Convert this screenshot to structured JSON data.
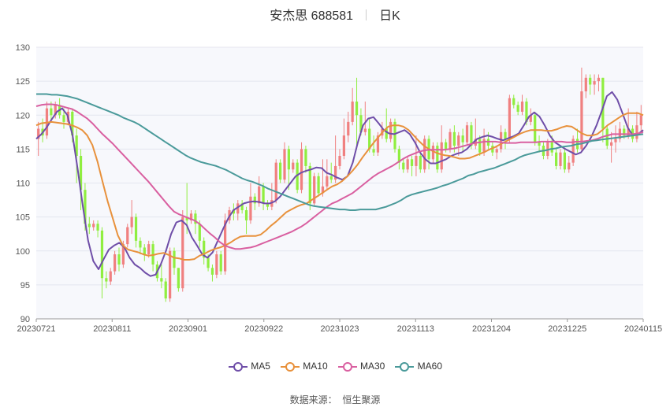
{
  "header": {
    "stock": "安杰思 688581",
    "period": "日K"
  },
  "source": {
    "label": "数据来源：",
    "name": "恒生聚源"
  },
  "chart_data": {
    "type": "candlestick",
    "ylim": [
      90,
      130
    ],
    "yticks": [
      90,
      95,
      100,
      105,
      110,
      115,
      120,
      125,
      130
    ],
    "xticks": [
      "20230721",
      "20230811",
      "20230901",
      "20230922",
      "20231023",
      "20231113",
      "20231204",
      "20231225",
      "20240115"
    ],
    "up_color": "#f08080",
    "down_color": "#90ee40",
    "candles": [
      [
        116.5,
        118,
        114,
        119
      ],
      [
        118,
        117,
        116,
        119.5
      ],
      [
        117,
        121,
        116.5,
        122
      ],
      [
        121,
        120,
        119,
        122
      ],
      [
        120,
        121.5,
        119.5,
        122
      ],
      [
        121.5,
        120,
        119.5,
        122.5
      ],
      [
        120,
        119,
        118,
        121
      ],
      [
        119,
        120.5,
        118.5,
        121
      ],
      [
        120.5,
        117,
        116,
        121
      ],
      [
        117,
        114,
        110,
        118
      ],
      [
        114,
        109,
        106,
        115
      ],
      [
        109,
        104,
        103,
        110
      ],
      [
        104,
        103.5,
        102.5,
        105
      ],
      [
        103.5,
        104,
        103,
        104.5
      ],
      [
        104,
        103,
        102,
        104.5
      ],
      [
        103,
        96,
        93,
        103.5
      ],
      [
        96,
        95.5,
        94.5,
        97
      ],
      [
        95.5,
        97,
        95,
        97.5
      ],
      [
        97,
        99.5,
        96.5,
        100
      ],
      [
        99.5,
        98,
        97,
        100.5
      ],
      [
        98,
        101,
        97.5,
        101.5
      ],
      [
        101,
        103.5,
        100.5,
        104
      ],
      [
        103.5,
        105,
        102.5,
        107.5
      ],
      [
        105,
        101.5,
        100.5,
        105.5
      ],
      [
        101.5,
        100.5,
        99.5,
        102
      ],
      [
        100.5,
        99.5,
        98.5,
        101
      ],
      [
        99.5,
        101,
        99,
        101.5
      ],
      [
        101,
        98,
        97,
        101.5
      ],
      [
        98,
        96,
        95.5,
        98.5
      ],
      [
        96,
        95.5,
        94.5,
        98
      ],
      [
        95.5,
        93,
        92.5,
        96
      ],
      [
        93,
        100,
        92.5,
        100.5
      ],
      [
        100,
        97.5,
        96.5,
        100.5
      ],
      [
        97.5,
        94.5,
        94,
        97.5
      ],
      [
        94.5,
        105,
        94,
        106
      ],
      [
        105,
        104.5,
        102.5,
        110
      ],
      [
        104.5,
        105.5,
        104,
        106
      ],
      [
        105.5,
        104,
        102.5,
        106
      ],
      [
        104,
        101.5,
        100.5,
        104.5
      ],
      [
        101.5,
        99,
        98,
        102
      ],
      [
        99,
        97.5,
        97,
        99.5
      ],
      [
        97.5,
        96.5,
        95.5,
        98
      ],
      [
        96.5,
        99.5,
        96,
        100
      ],
      [
        99.5,
        97,
        96.5,
        100
      ],
      [
        97,
        104.5,
        96.5,
        105.5
      ],
      [
        104.5,
        106,
        104,
        106.5
      ],
      [
        106,
        105.5,
        104.5,
        107
      ],
      [
        105.5,
        107,
        104.5,
        107.5
      ],
      [
        107,
        106,
        105.5,
        107.5
      ],
      [
        106,
        104.5,
        102.5,
        106.5
      ],
      [
        104.5,
        108,
        104,
        110
      ],
      [
        108,
        107,
        106,
        108.5
      ],
      [
        107,
        109.5,
        106.5,
        111
      ],
      [
        109.5,
        107,
        106,
        110
      ],
      [
        107,
        106.5,
        106,
        107.5
      ],
      [
        106.5,
        107.5,
        106,
        110
      ],
      [
        107.5,
        113,
        107,
        113.5
      ],
      [
        113,
        110.5,
        110,
        113.5
      ],
      [
        110.5,
        115,
        110,
        116
      ],
      [
        115,
        112,
        109,
        115.5
      ],
      [
        112,
        113,
        111.5,
        113.5
      ],
      [
        113,
        109,
        108.5,
        113.5
      ],
      [
        109,
        115,
        108.5,
        116
      ],
      [
        115,
        112.5,
        111.5,
        115.5
      ],
      [
        112.5,
        107,
        106,
        113
      ],
      [
        107,
        111,
        106.5,
        111.5
      ],
      [
        111,
        108.5,
        108,
        111.5
      ],
      [
        108.5,
        109.5,
        108,
        113.5
      ],
      [
        109.5,
        111,
        109,
        113.5
      ],
      [
        111,
        110.5,
        110,
        113
      ],
      [
        110.5,
        112.5,
        110,
        117
      ],
      [
        112.5,
        114,
        112,
        115
      ],
      [
        114,
        117,
        113.5,
        119.5
      ],
      [
        117,
        119,
        116,
        120.5
      ],
      [
        119,
        122,
        118.5,
        124
      ],
      [
        122,
        120,
        115,
        125.5
      ],
      [
        120,
        117.5,
        117,
        121
      ],
      [
        117.5,
        118,
        117,
        122
      ],
      [
        118,
        115,
        114.5,
        119.5
      ],
      [
        115,
        114.5,
        114,
        117
      ],
      [
        114.5,
        117,
        114,
        117.5
      ],
      [
        117,
        118,
        116.5,
        119
      ],
      [
        118,
        116.5,
        116,
        121
      ],
      [
        116.5,
        119,
        116,
        119.5
      ],
      [
        119,
        115,
        114.5,
        119.5
      ],
      [
        115,
        113,
        112,
        115.5
      ],
      [
        113,
        112,
        111.5,
        113.5
      ],
      [
        112,
        113.5,
        111.5,
        114
      ],
      [
        113.5,
        112.5,
        111,
        114
      ],
      [
        112.5,
        114,
        111,
        117
      ],
      [
        114,
        112,
        111.5,
        114.5
      ],
      [
        112,
        116.5,
        111.5,
        117
      ],
      [
        116.5,
        113.5,
        112,
        117
      ],
      [
        113.5,
        115.5,
        113,
        116
      ],
      [
        115.5,
        112,
        111.5,
        116
      ],
      [
        112,
        116,
        111.5,
        118.5
      ],
      [
        116,
        115,
        114.5,
        116.5
      ],
      [
        115,
        117.5,
        114.5,
        118
      ],
      [
        117.5,
        115.5,
        114.5,
        118.5
      ],
      [
        115.5,
        117,
        114,
        117.5
      ],
      [
        117,
        116,
        114.5,
        118
      ],
      [
        116,
        118.5,
        115.5,
        119
      ],
      [
        118.5,
        115.5,
        115,
        119
      ],
      [
        115.5,
        116.5,
        115,
        119.5
      ],
      [
        116.5,
        114.5,
        114,
        117
      ],
      [
        114.5,
        116.5,
        114,
        118
      ],
      [
        116.5,
        115.5,
        115,
        117.5
      ],
      [
        115.5,
        114.5,
        114,
        116
      ],
      [
        114.5,
        115,
        113.5,
        115.5
      ],
      [
        115,
        117.5,
        114.5,
        118.5
      ],
      [
        117.5,
        116.5,
        115,
        118
      ],
      [
        116.5,
        122.5,
        116,
        123
      ],
      [
        122.5,
        121.5,
        121,
        123
      ],
      [
        121.5,
        120.5,
        120,
        122
      ],
      [
        120.5,
        122,
        120,
        123
      ],
      [
        122,
        119,
        118.5,
        122.5
      ],
      [
        119,
        120,
        118.5,
        121
      ],
      [
        120,
        116,
        115.5,
        120.5
      ],
      [
        116,
        115.5,
        114.5,
        117
      ],
      [
        115.5,
        114,
        113.5,
        116
      ],
      [
        114,
        116,
        113.5,
        116.5
      ],
      [
        116,
        114.5,
        114,
        117
      ],
      [
        114.5,
        112.5,
        112,
        115
      ],
      [
        112.5,
        114.5,
        112,
        115
      ],
      [
        114.5,
        112,
        111.5,
        115
      ],
      [
        112,
        113,
        111.5,
        114
      ],
      [
        113,
        116.5,
        112.5,
        117
      ],
      [
        116.5,
        115,
        114.5,
        118
      ],
      [
        115,
        123.5,
        114.5,
        127
      ],
      [
        123.5,
        125.5,
        122.5,
        126
      ],
      [
        125.5,
        124.5,
        123,
        126
      ],
      [
        124.5,
        125,
        123,
        126
      ],
      [
        125,
        125.5,
        123.5,
        126
      ],
      [
        125.5,
        118,
        116,
        125.5
      ],
      [
        118,
        115.5,
        115,
        118.5
      ],
      [
        115.5,
        116,
        113,
        117.5
      ],
      [
        116,
        116.5,
        114.5,
        118.5
      ],
      [
        116.5,
        118,
        116,
        119
      ],
      [
        118,
        117,
        116.5,
        118.5
      ],
      [
        117,
        118,
        116.5,
        121
      ],
      [
        118,
        116.5,
        116,
        118.5
      ],
      [
        116.5,
        118.5,
        116,
        120.5
      ],
      [
        118.5,
        120,
        117.5,
        121.5
      ]
    ],
    "series": [
      {
        "name": "MA5",
        "color": "#6f4ea8",
        "values": [
          116.5,
          117.2,
          118.2,
          119.4,
          120.5,
          121,
          120,
          117,
          112,
          106.5,
          101.5,
          98.5,
          97.3,
          98.8,
          100.2,
          100.8,
          101.2,
          100.5,
          99,
          98,
          97.5,
          96.8,
          96.3,
          96.5,
          98,
          100,
          102.5,
          104.2,
          104.5,
          103.8,
          102,
          100.8,
          99.5,
          99,
          99.8,
          101.5,
          103.2,
          104.8,
          106,
          106.5,
          107,
          107.2,
          107.3,
          107.2,
          107,
          107,
          107.3,
          108,
          109,
          110,
          111,
          111.5,
          111.8,
          112,
          112.3,
          112.2,
          111.5,
          111.2,
          110.8,
          110.5,
          111,
          113,
          116,
          118.5,
          119.5,
          119.7,
          118.8,
          117.8,
          117.3,
          117.2,
          117.5,
          117.8,
          117.2,
          116,
          114.5,
          113.5,
          112.9,
          112.9,
          113.2,
          113.5,
          114,
          114.3,
          114.5,
          115,
          115.8,
          116.5,
          116.8,
          117,
          116.8,
          116.5,
          116.3,
          116.6,
          116.9,
          117.3,
          118.5,
          119.8,
          120.4,
          119.8,
          118.5,
          117,
          116,
          115.5,
          115,
          114.6,
          114.2,
          114.5,
          115.5,
          116.8,
          118.5,
          120.6,
          122.8,
          123.4,
          122.3,
          120.3,
          118.2,
          117,
          117.2,
          117.8
        ]
      },
      {
        "name": "MA10",
        "color": "#e8913c",
        "values": [
          118.5,
          118.8,
          118.9,
          119,
          118.9,
          118.8,
          118.7,
          118.5,
          118.2,
          117.8,
          117,
          115.6,
          113.2,
          110.2,
          107.3,
          104.8,
          102.3,
          100.8,
          100.2,
          100,
          99.8,
          99.5,
          99.3,
          99.4,
          99.6,
          99.7,
          99.4,
          99,
          98.9,
          98.7,
          98.7,
          98.8,
          99.3,
          99.6,
          100,
          100.3,
          100.5,
          100.8,
          101.2,
          101.7,
          102.1,
          102.2,
          102.2,
          102.2,
          102.4,
          103,
          103.7,
          104.3,
          105,
          105.7,
          106.1,
          106.5,
          106.8,
          107,
          107.5,
          108,
          108.5,
          109,
          109.5,
          109.8,
          110.3,
          111,
          111.8,
          112.7,
          113.8,
          114.8,
          115.8,
          116.7,
          117.6,
          118.3,
          118.5,
          118.5,
          118.3,
          117.8,
          117,
          116.2,
          115.5,
          115,
          114.6,
          114.3,
          114.1,
          114,
          113.8,
          113.6,
          113.6,
          113.7,
          114,
          114.3,
          114.6,
          115,
          115.3,
          115.7,
          116.1,
          116.5,
          116.9,
          117.3,
          117.6,
          117.8,
          117.8,
          117.8,
          117.7,
          117.7,
          117.9,
          118.2,
          118.4,
          118.3,
          117.8,
          117.3,
          117,
          117,
          117.2,
          117.8,
          118.5,
          119,
          119.5,
          120,
          120.3,
          120.3,
          120.3,
          120
        ]
      },
      {
        "name": "MA30",
        "color": "#d95fa0",
        "values": [
          121.3,
          121.5,
          121.6,
          121.6,
          121.5,
          121.3,
          121.1,
          120.9,
          120.5,
          120,
          119.5,
          118.8,
          118,
          117.2,
          116.5,
          115.8,
          115,
          114.2,
          113.4,
          112.6,
          111.8,
          111,
          110.2,
          109.3,
          108.4,
          107.5,
          106.6,
          105.8,
          105.4,
          105.1,
          104.8,
          104.5,
          104,
          103.3,
          102.6,
          102,
          101.3,
          100.8,
          100.5,
          100.3,
          100.3,
          100.4,
          100.5,
          100.7,
          101,
          101.3,
          101.6,
          101.9,
          102.2,
          102.5,
          102.8,
          103.2,
          103.6,
          104.1,
          104.7,
          105.3,
          105.9,
          106.5,
          107,
          107.3,
          107.7,
          108.1,
          108.5,
          109.1,
          109.7,
          110.3,
          110.9,
          111.4,
          111.8,
          112.2,
          112.6,
          113.1,
          113.6,
          114,
          114.3,
          114.6,
          114.8,
          114.9,
          114.9,
          114.9,
          114.9,
          115,
          115.1,
          115.3,
          115.5,
          115.7,
          115.9,
          116,
          116.1,
          116.1,
          116.1,
          116,
          115.9,
          115.9,
          115.9,
          116,
          116,
          116,
          116,
          116.1,
          116.1,
          116.1,
          116.1,
          116.1,
          116,
          116,
          116.1,
          116.1,
          116.2,
          116.3,
          116.5,
          116.8,
          117,
          117.2,
          117.2,
          117.2,
          117.2,
          117.2,
          117.3,
          117.5
        ]
      },
      {
        "name": "MA60",
        "color": "#4a9a9a",
        "values": [
          123.1,
          123.1,
          123.1,
          123,
          123,
          122.9,
          122.8,
          122.6,
          122.4,
          122.1,
          121.8,
          121.5,
          121.2,
          120.9,
          120.6,
          120.3,
          120,
          119.6,
          119.3,
          119,
          118.6,
          118.1,
          117.6,
          117.1,
          116.6,
          116.1,
          115.6,
          115.1,
          114.6,
          114.1,
          113.7,
          113.4,
          113.1,
          112.9,
          112.7,
          112.5,
          112.2,
          111.9,
          111.5,
          111.1,
          110.7,
          110.4,
          110.2,
          109.9,
          109.6,
          109.2,
          108.9,
          108.6,
          108.3,
          108,
          107.7,
          107.4,
          107.1,
          106.8,
          106.6,
          106.5,
          106.4,
          106.3,
          106.2,
          106.1,
          106.1,
          106,
          106,
          106.1,
          106.1,
          106.1,
          106.1,
          106.3,
          106.5,
          106.8,
          107.1,
          107.5,
          108,
          108.3,
          108.5,
          108.7,
          108.9,
          109.1,
          109.3,
          109.6,
          109.8,
          110.1,
          110.4,
          110.7,
          111.1,
          111.3,
          111.6,
          111.8,
          112,
          112.2,
          112.5,
          112.8,
          113.1,
          113.4,
          113.8,
          114.1,
          114.3,
          114.5,
          114.7,
          114.8,
          115,
          115.1,
          115.3,
          115.4,
          115.5,
          115.7,
          115.8,
          116,
          116.2,
          116.3,
          116.4,
          116.5,
          116.6,
          116.7,
          116.8,
          116.9,
          117,
          117.1,
          117.2
        ]
      }
    ]
  }
}
